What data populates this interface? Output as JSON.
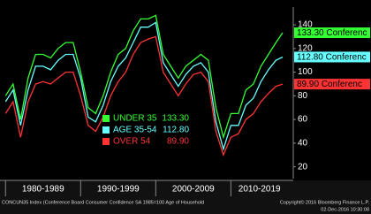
{
  "chart_data": {
    "type": "line",
    "x": [
      1980,
      1981,
      1982,
      1983,
      1984,
      1985,
      1986,
      1987,
      1988,
      1989,
      1990,
      1991,
      1992,
      1993,
      1994,
      1995,
      1996,
      1997,
      1998,
      1999,
      2000,
      2001,
      2002,
      2003,
      2004,
      2005,
      2006,
      2007,
      2008,
      2009,
      2010,
      2011,
      2012,
      2013,
      2014,
      2015,
      2016,
      2016.9
    ],
    "xlim": [
      1979.5,
      2017.6
    ],
    "x_bands": [
      {
        "label": "1980-1989",
        "start": 1980,
        "end": 1990
      },
      {
        "label": "1990-1999",
        "start": 1990,
        "end": 2000
      },
      {
        "label": "2000-2009",
        "start": 2000,
        "end": 2010
      },
      {
        "label": "2010-2019",
        "start": 2010,
        "end": 2017.6
      }
    ],
    "ylim": [
      10,
      155
    ],
    "yticks": [
      20,
      40,
      60,
      80,
      100,
      120,
      140
    ],
    "grid": false,
    "series": [
      {
        "name": "UNDER 35",
        "color": "#33ff33",
        "last_label": "133.30",
        "tag": "Conferenc",
        "values": [
          80,
          90,
          60,
          95,
          115,
          115,
          112,
          120,
          125,
          125,
          100,
          70,
          65,
          80,
          100,
          115,
          120,
          135,
          145,
          145,
          148,
          115,
          105,
          95,
          105,
          110,
          115,
          110,
          70,
          45,
          65,
          65,
          85,
          90,
          105,
          115,
          125,
          133.3
        ]
      },
      {
        "name": "AGE 35-54",
        "color": "#66ffff",
        "last_label": "112.80",
        "tag": "Conferenc",
        "values": [
          75,
          85,
          55,
          85,
          105,
          105,
          102,
          110,
          115,
          115,
          95,
          62,
          58,
          72,
          92,
          105,
          112,
          125,
          138,
          138,
          142,
          108,
          98,
          88,
          98,
          105,
          108,
          100,
          58,
          35,
          55,
          55,
          72,
          78,
          92,
          102,
          110,
          112.8
        ]
      },
      {
        "name": "OVER 54",
        "color": "#ff3333",
        "last_label": "89.90",
        "tag": "Conferenc",
        "values": [
          65,
          75,
          45,
          75,
          90,
          92,
          90,
          95,
          100,
          100,
          80,
          55,
          50,
          62,
          80,
          92,
          100,
          115,
          125,
          128,
          130,
          100,
          90,
          80,
          90,
          98,
          100,
          92,
          50,
          30,
          45,
          48,
          60,
          65,
          75,
          82,
          88,
          89.9
        ]
      }
    ],
    "source": "CONCUN35 Index (Conference Board Consumer Confidence SA 1985=100 Age of Household",
    "copyright": "Copyright© 2016 Bloomberg Finance L.P.",
    "timestamp": "02-Dec-2016 10:30:08"
  }
}
